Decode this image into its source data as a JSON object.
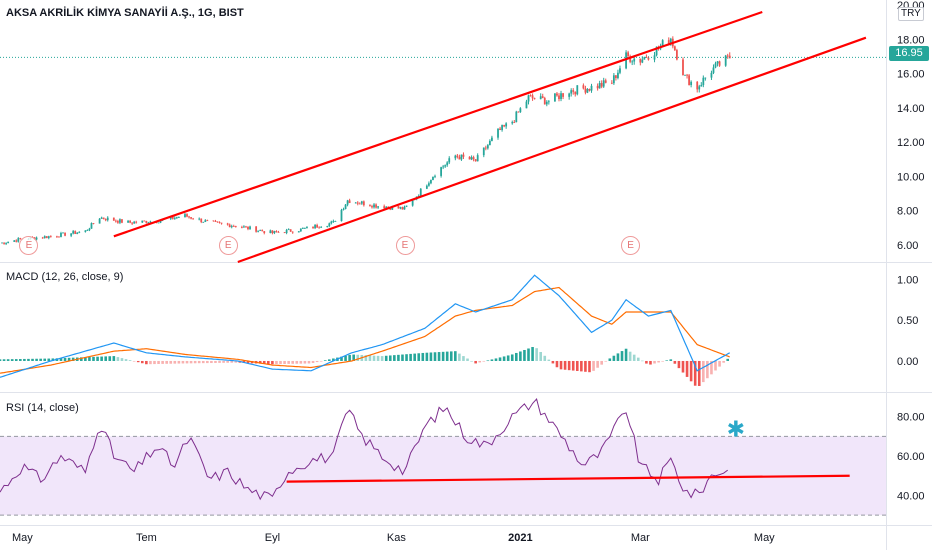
{
  "header": {
    "title": "AKSA AKRİLİK KİMYA SANAYİİ A.Ş., 1G, BIST",
    "currency": "TRY"
  },
  "price": {
    "last": "16.95",
    "up_color": "#26a69a",
    "down_color": "#ef5350"
  },
  "earnings_markers": [
    {
      "label": "E",
      "date": "2020-05-04"
    },
    {
      "label": "E",
      "date": "2020-08-10"
    },
    {
      "label": "E",
      "date": "2020-11-05"
    },
    {
      "label": "E",
      "date": "2021-02-24"
    }
  ],
  "macd": {
    "title": "MACD (12, 26, close, 9)",
    "macd_color": "#2196f3",
    "signal_color": "#ff6d00",
    "hist_pos_color": "#26a69a",
    "hist_neg_color": "#ef5350"
  },
  "rsi": {
    "title": "RSI (14, close)",
    "line_color": "#7e2f8e",
    "band_color": "#ead8f7",
    "asterisk": "✱"
  },
  "chart_data": [
    {
      "type": "candlestick",
      "pane": "price",
      "ylim": [
        5.0,
        20.3
      ],
      "y_ticks": [
        "20.00",
        "18.00",
        "16.00",
        "14.00",
        "12.00",
        "10.00",
        "8.00",
        "6.00"
      ],
      "y_tick_values": [
        20,
        18,
        16,
        14,
        12,
        10,
        8,
        6
      ],
      "x_ticks": [
        {
          "label": "May",
          "date": "2020-05-01"
        },
        {
          "label": "Tem",
          "date": "2020-07-01"
        },
        {
          "label": "Eyl",
          "date": "2020-09-01"
        },
        {
          "label": "Kas",
          "date": "2020-11-01"
        },
        {
          "label": "2021",
          "date": "2021-01-01",
          "bold": true
        },
        {
          "label": "Mar",
          "date": "2021-03-01"
        },
        {
          "label": "May",
          "date": "2021-05-01"
        }
      ],
      "series": [
        {
          "name": "close",
          "points": [
            [
              "2020-04-20",
              6.1
            ],
            [
              "2020-05-01",
              6.35
            ],
            [
              "2020-05-15",
              6.5
            ],
            [
              "2020-06-01",
              6.8
            ],
            [
              "2020-06-08",
              7.6
            ],
            [
              "2020-06-22",
              7.3
            ],
            [
              "2020-07-06",
              7.4
            ],
            [
              "2020-07-20",
              7.7
            ],
            [
              "2020-08-01",
              7.3
            ],
            [
              "2020-08-15",
              7.1
            ],
            [
              "2020-09-01",
              6.7
            ],
            [
              "2020-09-15",
              6.9
            ],
            [
              "2020-10-01",
              7.3
            ],
            [
              "2020-10-08",
              8.6
            ],
            [
              "2020-10-22",
              8.3
            ],
            [
              "2020-11-05",
              8.1
            ],
            [
              "2020-11-12",
              9.0
            ],
            [
              "2020-11-20",
              10.2
            ],
            [
              "2020-11-30",
              11.2
            ],
            [
              "2020-12-10",
              10.9
            ],
            [
              "2020-12-21",
              12.6
            ],
            [
              "2020-12-28",
              13.2
            ],
            [
              "2021-01-05",
              14.6
            ],
            [
              "2021-01-15",
              14.4
            ],
            [
              "2021-01-25",
              15.0
            ],
            [
              "2021-02-05",
              15.2
            ],
            [
              "2021-02-15",
              15.5
            ],
            [
              "2021-02-22",
              17.0
            ],
            [
              "2021-03-01",
              16.8
            ],
            [
              "2021-03-10",
              17.5
            ],
            [
              "2021-03-16",
              18.1
            ],
            [
              "2021-03-23",
              15.8
            ],
            [
              "2021-03-29",
              15.2
            ],
            [
              "2021-04-05",
              16.2
            ],
            [
              "2021-04-14",
              16.95
            ]
          ]
        }
      ],
      "trendlines": [
        {
          "color": "#ff0000",
          "from": [
            "2020-06-15",
            6.5
          ],
          "to": [
            "2021-04-30",
            19.6
          ]
        },
        {
          "color": "#ff0000",
          "from": [
            "2020-08-15",
            5.0
          ],
          "to": [
            "2021-06-20",
            18.1
          ]
        }
      ]
    },
    {
      "type": "line",
      "pane": "macd",
      "ylim": [
        -0.38,
        1.2
      ],
      "y_ticks": [
        "1.00",
        "0.50",
        "0.00"
      ],
      "y_tick_values": [
        1.0,
        0.5,
        0.0
      ],
      "series": [
        {
          "name": "MACD",
          "points": [
            [
              "2020-04-20",
              -0.2
            ],
            [
              "2020-05-15",
              0.0
            ],
            [
              "2020-06-15",
              0.22
            ],
            [
              "2020-07-01",
              0.1
            ],
            [
              "2020-07-20",
              0.05
            ],
            [
              "2020-08-15",
              0.0
            ],
            [
              "2020-09-01",
              -0.1
            ],
            [
              "2020-09-20",
              -0.12
            ],
            [
              "2020-10-10",
              0.1
            ],
            [
              "2020-10-25",
              0.2
            ],
            [
              "2020-11-15",
              0.4
            ],
            [
              "2020-11-30",
              0.7
            ],
            [
              "2020-12-10",
              0.6
            ],
            [
              "2020-12-28",
              0.75
            ],
            [
              "2021-01-08",
              1.05
            ],
            [
              "2021-01-20",
              0.8
            ],
            [
              "2021-02-05",
              0.35
            ],
            [
              "2021-02-15",
              0.5
            ],
            [
              "2021-02-22",
              0.75
            ],
            [
              "2021-03-05",
              0.55
            ],
            [
              "2021-03-16",
              0.62
            ],
            [
              "2021-03-29",
              -0.12
            ],
            [
              "2021-04-14",
              0.1
            ]
          ]
        },
        {
          "name": "Signal",
          "points": [
            [
              "2020-04-20",
              -0.15
            ],
            [
              "2020-05-15",
              -0.05
            ],
            [
              "2020-06-15",
              0.12
            ],
            [
              "2020-07-01",
              0.15
            ],
            [
              "2020-07-20",
              0.08
            ],
            [
              "2020-08-15",
              0.02
            ],
            [
              "2020-09-01",
              -0.05
            ],
            [
              "2020-09-20",
              -0.08
            ],
            [
              "2020-10-10",
              0.0
            ],
            [
              "2020-10-25",
              0.12
            ],
            [
              "2020-11-15",
              0.3
            ],
            [
              "2020-11-30",
              0.55
            ],
            [
              "2020-12-10",
              0.62
            ],
            [
              "2020-12-28",
              0.68
            ],
            [
              "2021-01-08",
              0.85
            ],
            [
              "2021-01-20",
              0.9
            ],
            [
              "2021-02-05",
              0.55
            ],
            [
              "2021-02-15",
              0.45
            ],
            [
              "2021-02-22",
              0.6
            ],
            [
              "2021-03-05",
              0.6
            ],
            [
              "2021-03-16",
              0.6
            ],
            [
              "2021-03-29",
              0.2
            ],
            [
              "2021-04-14",
              0.05
            ]
          ]
        },
        {
          "name": "Histogram",
          "points": [
            [
              "2020-04-20",
              0.02
            ],
            [
              "2020-05-15",
              0.03
            ],
            [
              "2020-06-15",
              0.06
            ],
            [
              "2020-07-01",
              -0.04
            ],
            [
              "2020-07-20",
              -0.03
            ],
            [
              "2020-08-15",
              -0.02
            ],
            [
              "2020-09-01",
              -0.04
            ],
            [
              "2020-09-20",
              -0.03
            ],
            [
              "2020-10-10",
              0.08
            ],
            [
              "2020-10-25",
              0.06
            ],
            [
              "2020-11-15",
              0.1
            ],
            [
              "2020-11-30",
              0.12
            ],
            [
              "2020-12-10",
              -0.03
            ],
            [
              "2020-12-28",
              0.08
            ],
            [
              "2021-01-08",
              0.18
            ],
            [
              "2021-01-20",
              -0.1
            ],
            [
              "2021-02-05",
              -0.14
            ],
            [
              "2021-02-15",
              0.05
            ],
            [
              "2021-02-22",
              0.15
            ],
            [
              "2021-03-05",
              -0.05
            ],
            [
              "2021-03-16",
              0.02
            ],
            [
              "2021-03-29",
              -0.33
            ],
            [
              "2021-04-14",
              0.05
            ]
          ]
        }
      ]
    },
    {
      "type": "line",
      "pane": "rsi",
      "ylim": [
        25,
        92
      ],
      "y_ticks": [
        "80.00",
        "60.00",
        "40.00"
      ],
      "y_tick_values": [
        80,
        60,
        40
      ],
      "band": [
        30,
        70
      ],
      "series": [
        {
          "name": "RSI",
          "points": [
            [
              "2020-04-20",
              42
            ],
            [
              "2020-05-01",
              55
            ],
            [
              "2020-05-10",
              48
            ],
            [
              "2020-05-20",
              60
            ],
            [
              "2020-06-01",
              52
            ],
            [
              "2020-06-08",
              78
            ],
            [
              "2020-06-15",
              60
            ],
            [
              "2020-06-25",
              52
            ],
            [
              "2020-07-06",
              65
            ],
            [
              "2020-07-15",
              55
            ],
            [
              "2020-07-22",
              70
            ],
            [
              "2020-08-01",
              48
            ],
            [
              "2020-08-10",
              52
            ],
            [
              "2020-08-20",
              43
            ],
            [
              "2020-09-01",
              38
            ],
            [
              "2020-09-08",
              52
            ],
            [
              "2020-09-20",
              58
            ],
            [
              "2020-10-01",
              60
            ],
            [
              "2020-10-08",
              84
            ],
            [
              "2020-10-15",
              70
            ],
            [
              "2020-10-25",
              60
            ],
            [
              "2020-11-05",
              52
            ],
            [
              "2020-11-15",
              75
            ],
            [
              "2020-11-25",
              85
            ],
            [
              "2020-12-05",
              70
            ],
            [
              "2020-12-15",
              65
            ],
            [
              "2020-12-28",
              80
            ],
            [
              "2021-01-08",
              88
            ],
            [
              "2021-01-20",
              72
            ],
            [
              "2021-02-01",
              55
            ],
            [
              "2021-02-10",
              62
            ],
            [
              "2021-02-22",
              84
            ],
            [
              "2021-03-01",
              55
            ],
            [
              "2021-03-10",
              48
            ],
            [
              "2021-03-16",
              58
            ],
            [
              "2021-03-23",
              42
            ],
            [
              "2021-03-29",
              40
            ],
            [
              "2021-04-05",
              50
            ],
            [
              "2021-04-14",
              54
            ]
          ]
        }
      ],
      "trendlines": [
        {
          "color": "#ff0000",
          "from": [
            "2020-09-08",
            47
          ],
          "to": [
            "2021-06-12",
            50
          ]
        }
      ],
      "annotations": [
        {
          "text": "✱",
          "date": "2021-04-17",
          "value": 74,
          "color": "#29a8c9"
        }
      ]
    }
  ]
}
